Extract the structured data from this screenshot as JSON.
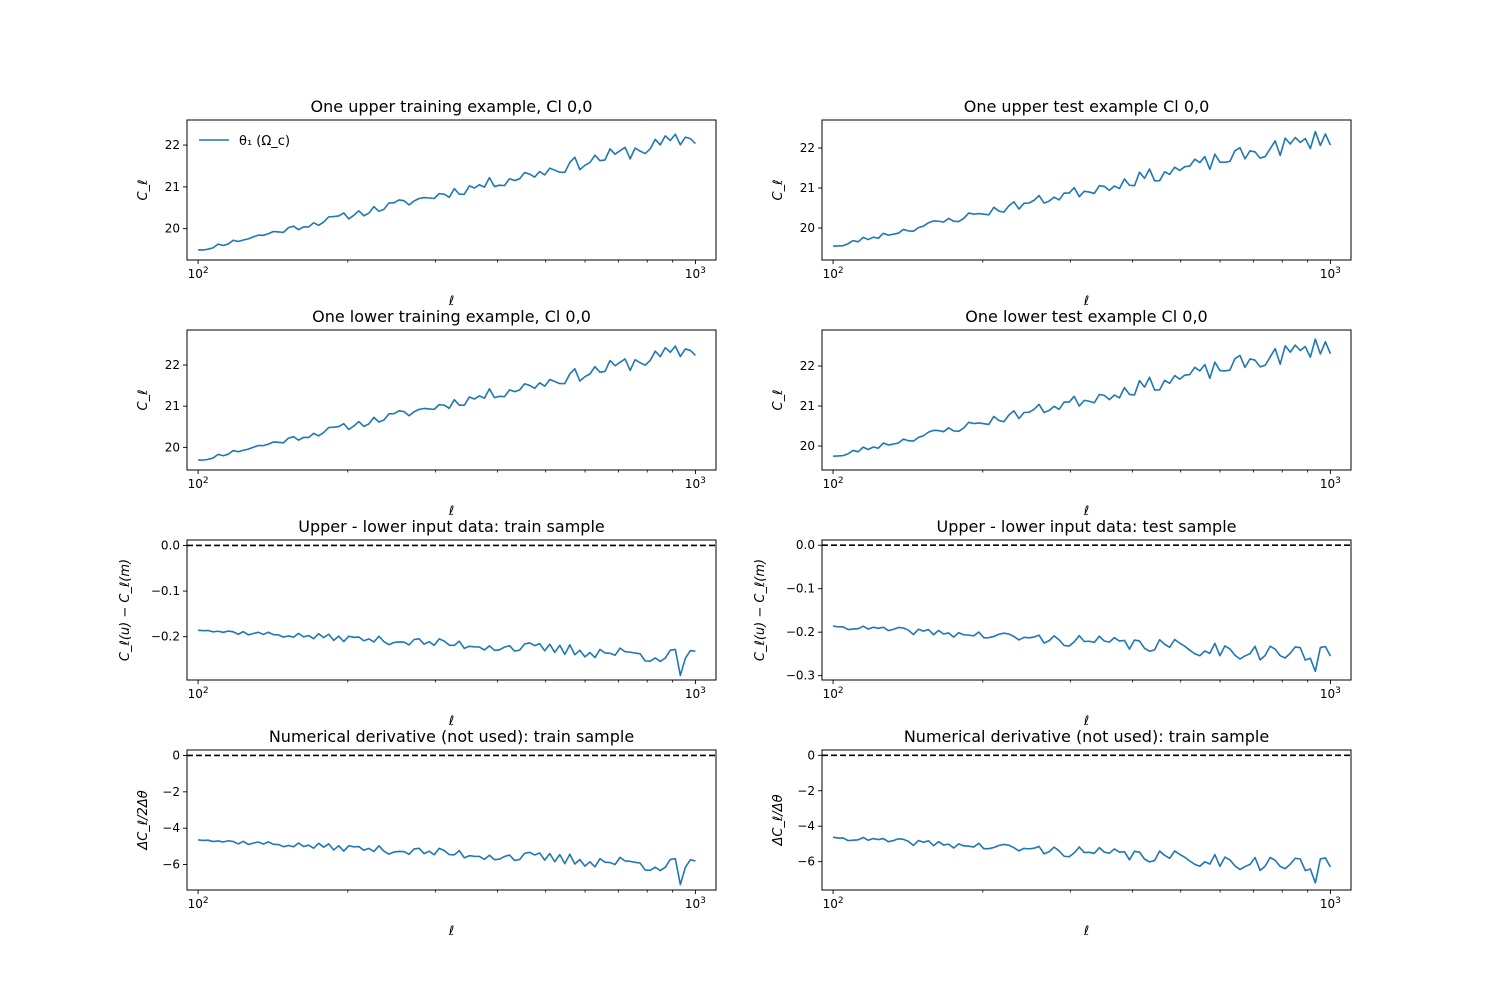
{
  "figure": {
    "background": "#ffffff",
    "line_color": "#1f77b4",
    "ref_line_color": "#000000"
  },
  "chart_data": [
    {
      "id": "p0",
      "type": "line",
      "title": "One upper training example, Cl 0,0",
      "xlabel": "ℓ",
      "ylabel": "C_ℓ",
      "xscale": "log",
      "xlim": [
        95,
        1100
      ],
      "ylim": [
        19.25,
        22.6
      ],
      "yticks": [
        20,
        21,
        22
      ],
      "ytick_labels": [
        "20",
        "21",
        "22"
      ],
      "xtick_labels": [
        "10^2",
        "10^3"
      ],
      "legend": {
        "position": "upper-left",
        "entries": [
          {
            "label": "θ₁ (Ω_c)",
            "color": "#1f77b4"
          }
        ]
      },
      "reference_line": null,
      "series": [
        {
          "name": "θ₁ (Ω_c)",
          "color": "#1f77b4",
          "start": 19.5,
          "end": 22.2,
          "noise": 0.12,
          "seed": 11
        }
      ]
    },
    {
      "id": "p1",
      "type": "line",
      "title": "One upper test example Cl 0,0",
      "xlabel": "ℓ",
      "ylabel": "C_ℓ",
      "xscale": "log",
      "xlim": [
        95,
        1100
      ],
      "ylim": [
        19.2,
        22.7
      ],
      "yticks": [
        20,
        21,
        22
      ],
      "ytick_labels": [
        "20",
        "21",
        "22"
      ],
      "xtick_labels": [
        "10^2",
        "10^3"
      ],
      "legend": null,
      "reference_line": null,
      "series": [
        {
          "color": "#1f77b4",
          "start": 19.55,
          "end": 22.3,
          "noise": 0.14,
          "seed": 23
        }
      ]
    },
    {
      "id": "p2",
      "type": "line",
      "title": "One lower training example, Cl 0,0",
      "xlabel": "ℓ",
      "ylabel": "C_ℓ",
      "xscale": "log",
      "xlim": [
        95,
        1100
      ],
      "ylim": [
        19.45,
        22.85
      ],
      "yticks": [
        20,
        21,
        22
      ],
      "ytick_labels": [
        "20",
        "21",
        "22"
      ],
      "xtick_labels": [
        "10^2",
        "10^3"
      ],
      "legend": null,
      "reference_line": null,
      "series": [
        {
          "color": "#1f77b4",
          "start": 19.7,
          "end": 22.4,
          "noise": 0.12,
          "seed": 11
        }
      ]
    },
    {
      "id": "p3",
      "type": "line",
      "title": "One lower test example Cl 0,0",
      "xlabel": "ℓ",
      "ylabel": "C_ℓ",
      "xscale": "log",
      "xlim": [
        95,
        1100
      ],
      "ylim": [
        19.4,
        22.9
      ],
      "yticks": [
        20,
        21,
        22
      ],
      "ytick_labels": [
        "20",
        "21",
        "22"
      ],
      "xtick_labels": [
        "10^2",
        "10^3"
      ],
      "legend": null,
      "reference_line": null,
      "series": [
        {
          "color": "#1f77b4",
          "start": 19.75,
          "end": 22.55,
          "noise": 0.15,
          "seed": 23
        }
      ]
    },
    {
      "id": "p4",
      "type": "line",
      "title": "Upper - lower input data: train sample",
      "xlabel": "ℓ",
      "ylabel": "C_ℓ(u) − C_ℓ(m)",
      "xscale": "log",
      "xlim": [
        95,
        1100
      ],
      "ylim": [
        -0.295,
        0.012
      ],
      "yticks": [
        0.0,
        -0.1,
        -0.2
      ],
      "ytick_labels": [
        "0.0",
        "−0.1",
        "−0.2"
      ],
      "xtick_labels": [
        "10^2",
        "10^3"
      ],
      "legend": null,
      "reference_line": {
        "y": 0,
        "style": "dashed"
      },
      "series": [
        {
          "color": "#1f77b4",
          "start": -0.186,
          "end": -0.245,
          "noise": 0.01,
          "seed": 37,
          "final": -0.232,
          "dip": -0.285
        }
      ]
    },
    {
      "id": "p5",
      "type": "line",
      "title": "Upper - lower input data: test sample",
      "xlabel": "ℓ",
      "ylabel": "C_ℓ(u) − C_ℓ(m)",
      "xscale": "log",
      "xlim": [
        95,
        1100
      ],
      "ylim": [
        -0.31,
        0.012
      ],
      "yticks": [
        0.0,
        -0.1,
        -0.2,
        -0.3
      ],
      "ytick_labels": [
        "0.0",
        "−0.1",
        "−0.2",
        "−0.3"
      ],
      "xtick_labels": [
        "10^2",
        "10^3"
      ],
      "legend": null,
      "reference_line": {
        "y": 0,
        "style": "dashed"
      },
      "series": [
        {
          "color": "#1f77b4",
          "start": -0.187,
          "end": -0.255,
          "noise": 0.013,
          "seed": 41,
          "final": -0.255,
          "dip": -0.29
        }
      ]
    },
    {
      "id": "p6",
      "type": "line",
      "title": "Numerical derivative (not used): train sample",
      "xlabel": "ℓ",
      "ylabel": "ΔC_ℓ/2Δθ",
      "xscale": "log",
      "xlim": [
        95,
        1100
      ],
      "ylim": [
        -7.4,
        0.3
      ],
      "yticks": [
        0,
        -2,
        -4,
        -6
      ],
      "ytick_labels": [
        "0",
        "−2",
        "−4",
        "−6"
      ],
      "xtick_labels": [
        "10^2",
        "10^3"
      ],
      "legend": null,
      "reference_line": {
        "y": 0,
        "style": "dashed"
      },
      "series": [
        {
          "color": "#1f77b4",
          "start": -4.65,
          "end": -6.1,
          "noise": 0.25,
          "seed": 37,
          "final": -5.8,
          "dip": -7.1
        }
      ]
    },
    {
      "id": "p7",
      "type": "line",
      "title": "Numerical derivative (not used): train sample",
      "xlabel": "ℓ",
      "ylabel": "ΔC_ℓ/Δθ",
      "xscale": "log",
      "xlim": [
        95,
        1100
      ],
      "ylim": [
        -7.6,
        0.3
      ],
      "yticks": [
        0,
        -2,
        -4,
        -6
      ],
      "ytick_labels": [
        "0",
        "−2",
        "−4",
        "−6"
      ],
      "xtick_labels": [
        "10^2",
        "10^3"
      ],
      "legend": null,
      "reference_line": {
        "y": 0,
        "style": "dashed"
      },
      "series": [
        {
          "color": "#1f77b4",
          "start": -4.65,
          "end": -6.3,
          "noise": 0.3,
          "seed": 41,
          "final": -6.3,
          "dip": -7.2
        }
      ]
    }
  ]
}
